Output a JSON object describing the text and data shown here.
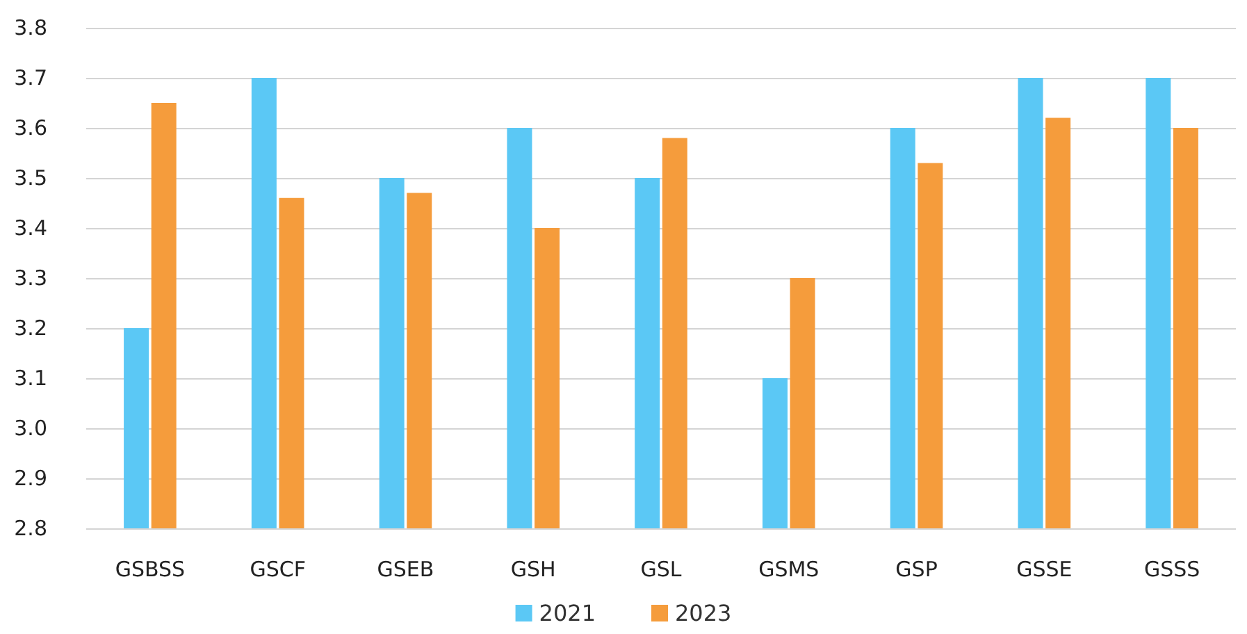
{
  "chart_data": {
    "type": "bar",
    "categories": [
      "GSBSS",
      "GSCF",
      "GSEB",
      "GSH",
      "GSL",
      "GSMS",
      "GSP",
      "GSSE",
      "GSSS"
    ],
    "series": [
      {
        "name": "2021",
        "color": "#5bc8f5",
        "values": [
          3.2,
          3.7,
          3.5,
          3.6,
          3.5,
          3.1,
          3.6,
          3.7,
          3.7
        ]
      },
      {
        "name": "2023",
        "color": "#f59c3c",
        "values": [
          3.65,
          3.46,
          3.47,
          3.4,
          3.58,
          3.3,
          3.53,
          3.62,
          3.6
        ]
      }
    ],
    "ylim": [
      2.8,
      3.8
    ],
    "yticks": [
      2.8,
      2.9,
      {
        "value": 3,
        "label": "3.0"
      },
      3.1,
      3.2,
      3.3,
      3.4,
      3.5,
      3.6,
      3.7,
      3.8
    ],
    "grid": "y",
    "legend": "bottom"
  }
}
